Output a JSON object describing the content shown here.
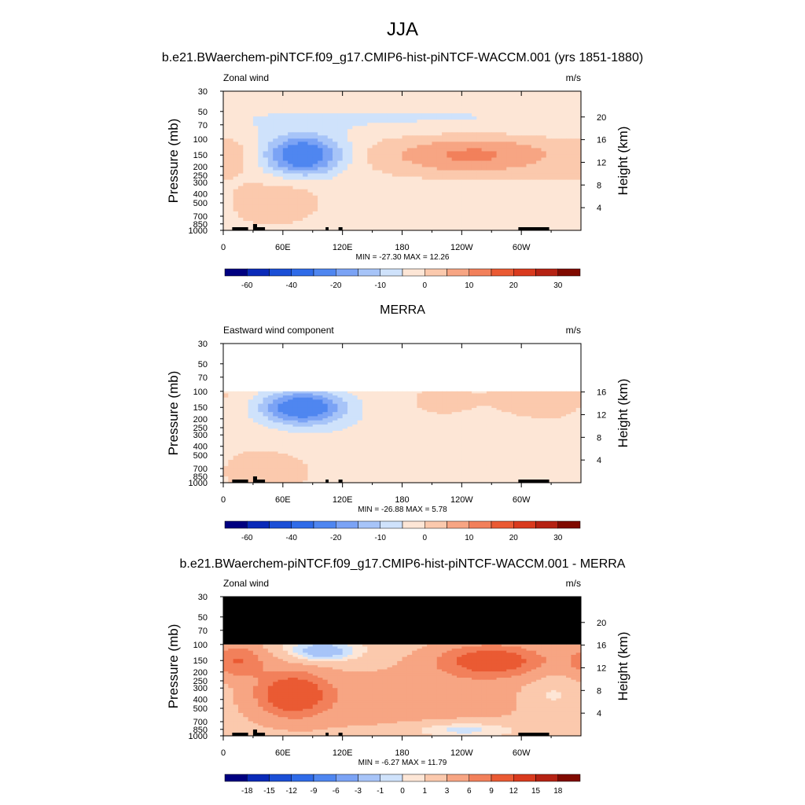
{
  "figure": {
    "title": "JJA"
  },
  "colors": {
    "raw_scale": [
      "#000080",
      "#0a2ab8",
      "#1b4fd6",
      "#2f6be8",
      "#4f86f0",
      "#7ba3f5",
      "#a7c4f8",
      "#cfe2fb",
      "#fde6d6",
      "#fbc9ad",
      "#f7a583",
      "#f2805b",
      "#ea5a33",
      "#d93a1e",
      "#b52213",
      "#800a00"
    ],
    "diff_scale": [
      "#000080",
      "#0a2ab8",
      "#1b4fd6",
      "#2f6be8",
      "#4f86f0",
      "#7ba3f5",
      "#a7c4f8",
      "#cfe2fb",
      "#fde6d6",
      "#fbc9ad",
      "#f7a583",
      "#f2805b",
      "#ea5a33",
      "#d93a1e",
      "#b52213",
      "#800a00"
    ],
    "missing": "#000000"
  },
  "chart_data": [
    {
      "type": "heatmap",
      "title": "b.e21.BWaerchem-piNTCF.f09_g17.CMIP6-hist-piNTCF-WACCM.001 (yrs 1851-1880)",
      "left_label": "Zonal wind",
      "units": "m/s",
      "ylabel": "Pressure (mb)",
      "y2label": "Height (km)",
      "x_ticks": [
        "0",
        "60E",
        "120E",
        "180",
        "120W",
        "60W"
      ],
      "x_tick_values": [
        0,
        60,
        120,
        180,
        240,
        300
      ],
      "xlim": [
        0,
        360
      ],
      "y_ticks": [
        "30",
        "50",
        "70",
        "100",
        "150",
        "200",
        "250",
        "300",
        "400",
        "500",
        "700",
        "850",
        "1000"
      ],
      "y_tick_values": [
        30,
        50,
        70,
        100,
        150,
        200,
        250,
        300,
        400,
        500,
        700,
        850,
        1000
      ],
      "ylim": [
        1000,
        30
      ],
      "y_scale": "log",
      "y2_ticks": [
        "4",
        "8",
        "12",
        "16",
        "20"
      ],
      "y2_tick_values": [
        4,
        8,
        12,
        16,
        20
      ],
      "stats": "MIN = -27.30  MAX =  12.26",
      "min": -27.3,
      "max": 12.26,
      "top_pressure_data": 30,
      "colorbar_labels": [
        "-60",
        "-40",
        "-20",
        "-10",
        "0",
        "10",
        "20",
        "30"
      ],
      "colorbar_levels": [
        -70,
        -60,
        -50,
        -40,
        -30,
        -20,
        -15,
        -10,
        -5,
        0,
        5,
        10,
        15,
        20,
        25,
        30,
        35
      ],
      "features": [
        {
          "lon": 80,
          "p": 150,
          "value": -27,
          "sx": 28,
          "sy": 0.35
        },
        {
          "lon": 250,
          "p": 150,
          "value": 12,
          "sx": 60,
          "sy": 0.35
        },
        {
          "lon": 60,
          "p": 500,
          "value": 6,
          "sx": 30,
          "sy": 0.35
        },
        {
          "lon": 10,
          "p": 150,
          "value": 3,
          "sx": 20,
          "sy": 0.3
        },
        {
          "lon": 200,
          "p": 600,
          "value": -4,
          "sx": 100,
          "sy": 0.6
        },
        {
          "lon": 180,
          "p": 60,
          "value": -5,
          "sx": 300,
          "sy": 0.35
        }
      ],
      "base_value": -0.5
    },
    {
      "type": "heatmap",
      "title": "MERRA",
      "left_label": "Eastward wind component",
      "units": "m/s",
      "ylabel": "Pressure (mb)",
      "y2label": "Height (km)",
      "x_ticks": [
        "0",
        "60E",
        "120E",
        "180",
        "120W",
        "60W"
      ],
      "x_tick_values": [
        0,
        60,
        120,
        180,
        240,
        300
      ],
      "xlim": [
        0,
        360
      ],
      "y_ticks": [
        "30",
        "50",
        "70",
        "100",
        "150",
        "200",
        "250",
        "300",
        "400",
        "500",
        "700",
        "850",
        "1000"
      ],
      "y_tick_values": [
        30,
        50,
        70,
        100,
        150,
        200,
        250,
        300,
        400,
        500,
        700,
        850,
        1000
      ],
      "ylim": [
        1000,
        30
      ],
      "y_scale": "log",
      "y2_ticks": [
        "4",
        "8",
        "12",
        "16"
      ],
      "y2_tick_values": [
        4,
        8,
        12,
        16
      ],
      "stats": "MIN = -26.88  MAX =   5.78",
      "min": -26.88,
      "max": 5.78,
      "top_pressure_data": 100,
      "colorbar_labels": [
        "-60",
        "-40",
        "-20",
        "-10",
        "0",
        "10",
        "20",
        "30"
      ],
      "colorbar_levels": [
        -70,
        -60,
        -50,
        -40,
        -30,
        -20,
        -15,
        -10,
        -5,
        0,
        5,
        10,
        15,
        20,
        25,
        30,
        35
      ],
      "features": [
        {
          "lon": 80,
          "p": 150,
          "value": -26,
          "sx": 30,
          "sy": 0.3
        },
        {
          "lon": 320,
          "p": 130,
          "value": 4,
          "sx": 35,
          "sy": 0.35
        },
        {
          "lon": 220,
          "p": 140,
          "value": 3,
          "sx": 25,
          "sy": 0.3
        },
        {
          "lon": 50,
          "p": 700,
          "value": 5,
          "sx": 40,
          "sy": 0.4
        },
        {
          "lon": 200,
          "p": 500,
          "value": -4,
          "sx": 120,
          "sy": 0.7
        }
      ],
      "base_value": -1
    },
    {
      "type": "heatmap",
      "title": "b.e21.BWaerchem-piNTCF.f09_g17.CMIP6-hist-piNTCF-WACCM.001 - MERRA",
      "left_label": "Zonal wind",
      "units": "m/s",
      "ylabel": "Pressure (mb)",
      "y2label": "Height (km)",
      "x_ticks": [
        "0",
        "60E",
        "120E",
        "180",
        "120W",
        "60W"
      ],
      "x_tick_values": [
        0,
        60,
        120,
        180,
        240,
        300
      ],
      "xlim": [
        0,
        360
      ],
      "y_ticks": [
        "30",
        "50",
        "70",
        "100",
        "150",
        "200",
        "250",
        "300",
        "400",
        "500",
        "700",
        "850",
        "1000"
      ],
      "y_tick_values": [
        30,
        50,
        70,
        100,
        150,
        200,
        250,
        300,
        400,
        500,
        700,
        850,
        1000
      ],
      "ylim": [
        1000,
        30
      ],
      "y_scale": "log",
      "y2_ticks": [
        "4",
        "8",
        "12",
        "16",
        "20"
      ],
      "y2_tick_values": [
        4,
        8,
        12,
        16,
        20
      ],
      "stats": "MIN =  -6.27  MAX =  11.79",
      "min": -6.27,
      "max": 11.79,
      "top_pressure_data": 100,
      "missing_above": 100,
      "colorbar_labels": [
        "-18",
        "-15",
        "-12",
        "-9",
        "-6",
        "-3",
        "-1",
        "0",
        "1",
        "3",
        "6",
        "9",
        "12",
        "15",
        "18"
      ],
      "colorbar_levels": [
        -21,
        -18,
        -15,
        -12,
        -9,
        -6,
        -3,
        -1,
        0,
        1,
        3,
        6,
        9,
        12,
        15,
        18,
        21
      ],
      "features": [
        {
          "lon": 270,
          "p": 150,
          "value": 10,
          "sx": 40,
          "sy": 0.3
        },
        {
          "lon": 15,
          "p": 150,
          "value": 7,
          "sx": 20,
          "sy": 0.3
        },
        {
          "lon": 70,
          "p": 350,
          "value": 10,
          "sx": 25,
          "sy": 0.4
        },
        {
          "lon": 100,
          "p": 120,
          "value": -4,
          "sx": 25,
          "sy": 0.2
        },
        {
          "lon": 240,
          "p": 850,
          "value": -3,
          "sx": 40,
          "sy": 0.15
        },
        {
          "lon": 330,
          "p": 350,
          "value": -2,
          "sx": 20,
          "sy": 0.4
        },
        {
          "lon": 180,
          "p": 400,
          "value": 3,
          "sx": 120,
          "sy": 0.6
        }
      ],
      "base_value": 1.5
    }
  ]
}
